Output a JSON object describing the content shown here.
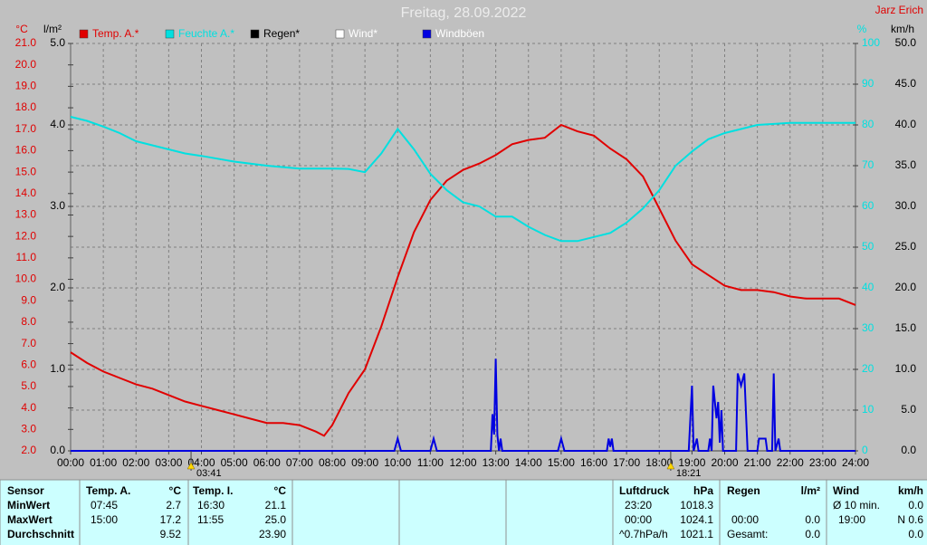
{
  "header": {
    "station": "Jarz Erich"
  },
  "chart_data": {
    "type": "line",
    "title": "Freitag, 28.09.2022",
    "ylabel": "°C",
    "y3label": "l/m²",
    "y2label": "%",
    "y4label": "km/h",
    "xlim": [
      0,
      24
    ],
    "xticks": [
      {
        "value": 0,
        "label": "00:00"
      },
      {
        "value": 1,
        "label": "01:00"
      },
      {
        "value": 2,
        "label": "02:00"
      },
      {
        "value": 3,
        "label": "03:00"
      },
      {
        "value": 4,
        "label": "04:00"
      },
      {
        "value": 5,
        "label": "05:00"
      },
      {
        "value": 6,
        "label": "06:00"
      },
      {
        "value": 7,
        "label": "07:00"
      },
      {
        "value": 8,
        "label": "08:00"
      },
      {
        "value": 9,
        "label": "09:00"
      },
      {
        "value": 10,
        "label": "10:00"
      },
      {
        "value": 11,
        "label": "11:00"
      },
      {
        "value": 12,
        "label": "12:00"
      },
      {
        "value": 13,
        "label": "13:00"
      },
      {
        "value": 14,
        "label": "14:00"
      },
      {
        "value": 15,
        "label": "15:00"
      },
      {
        "value": 16,
        "label": "16:00"
      },
      {
        "value": 17,
        "label": "17:00"
      },
      {
        "value": 18,
        "label": "18:00"
      },
      {
        "value": 19,
        "label": "19:00"
      },
      {
        "value": 20,
        "label": "20:00"
      },
      {
        "value": 21,
        "label": "21:00"
      },
      {
        "value": 22,
        "label": "22:00"
      },
      {
        "value": 23,
        "label": "23:00"
      },
      {
        "value": 24,
        "label": "24:00"
      }
    ],
    "ylim": [
      2,
      21
    ],
    "yticks": [
      {
        "value": 2,
        "label": "2.0"
      },
      {
        "value": 3,
        "label": "3.0"
      },
      {
        "value": 4,
        "label": "4.0"
      },
      {
        "value": 5,
        "label": "5.0"
      },
      {
        "value": 6,
        "label": "6.0"
      },
      {
        "value": 7,
        "label": "7.0"
      },
      {
        "value": 8,
        "label": "8.0"
      },
      {
        "value": 9,
        "label": "9.0"
      },
      {
        "value": 10,
        "label": "10.0"
      },
      {
        "value": 11,
        "label": "11.0"
      },
      {
        "value": 12,
        "label": "12.0"
      },
      {
        "value": 13,
        "label": "13.0"
      },
      {
        "value": 14,
        "label": "14.0"
      },
      {
        "value": 15,
        "label": "15.0"
      },
      {
        "value": 16,
        "label": "16.0"
      },
      {
        "value": 17,
        "label": "17.0"
      },
      {
        "value": 18,
        "label": "18.0"
      },
      {
        "value": 19,
        "label": "19.0"
      },
      {
        "value": 20,
        "label": "20.0"
      },
      {
        "value": 21,
        "label": "21.0"
      }
    ],
    "y3lim": [
      0,
      5
    ],
    "y3ticks": [
      {
        "value": 0,
        "label": "0.0"
      },
      {
        "value": 1,
        "label": "1.0"
      },
      {
        "value": 2,
        "label": "2.0"
      },
      {
        "value": 3,
        "label": "3.0"
      },
      {
        "value": 4,
        "label": "4.0"
      },
      {
        "value": 5,
        "label": "5.0"
      }
    ],
    "y2lim": [
      0,
      100
    ],
    "y2ticks": [
      0,
      10,
      20,
      30,
      40,
      50,
      60,
      70,
      80,
      90,
      100
    ],
    "y4lim": [
      0,
      50
    ],
    "y4ticks": [
      {
        "value": 0,
        "label": "0.0"
      },
      {
        "value": 5,
        "label": "5.0"
      },
      {
        "value": 10,
        "label": "10.0"
      },
      {
        "value": 15,
        "label": "15.0"
      },
      {
        "value": 20,
        "label": "20.0"
      },
      {
        "value": 25,
        "label": "25.0"
      },
      {
        "value": 30,
        "label": "30.0"
      },
      {
        "value": 35,
        "label": "35.0"
      },
      {
        "value": 40,
        "label": "40.0"
      },
      {
        "value": 45,
        "label": "45.0"
      },
      {
        "value": 50,
        "label": "50.0"
      }
    ],
    "grid": true,
    "series": [
      {
        "name": "Temp. A.*",
        "color": "#e00000",
        "axis": "y",
        "x": [
          0,
          0.5,
          1,
          1.5,
          2,
          2.5,
          3,
          3.5,
          4,
          4.5,
          5,
          5.5,
          6,
          6.5,
          7,
          7.5,
          7.75,
          8,
          8.5,
          9,
          9.5,
          10,
          10.5,
          11,
          11.5,
          12,
          12.5,
          13,
          13.5,
          14,
          14.5,
          15,
          15.5,
          16,
          16.5,
          17,
          17.5,
          18,
          18.5,
          19,
          19.5,
          20,
          20.5,
          21,
          21.5,
          22,
          22.5,
          23,
          23.5,
          24
        ],
        "values": [
          6.6,
          6.1,
          5.7,
          5.4,
          5.1,
          4.9,
          4.6,
          4.3,
          4.1,
          3.9,
          3.7,
          3.5,
          3.3,
          3.3,
          3.2,
          2.9,
          2.7,
          3.2,
          4.7,
          5.8,
          7.8,
          10.1,
          12.2,
          13.7,
          14.6,
          15.1,
          15.4,
          15.8,
          16.3,
          16.5,
          16.6,
          17.2,
          16.9,
          16.7,
          16.1,
          15.6,
          14.8,
          13.3,
          11.8,
          10.7,
          10.2,
          9.7,
          9.5,
          9.5,
          9.4,
          9.2,
          9.1,
          9.1,
          9.1,
          8.8
        ]
      },
      {
        "name": "Feuchte A.*",
        "color": "#00e0e0",
        "axis": "y2",
        "x": [
          0,
          0.5,
          1,
          1.5,
          2,
          2.5,
          3,
          3.5,
          4,
          5,
          6,
          7,
          8,
          8.5,
          9,
          9.5,
          10,
          10.5,
          11,
          11.5,
          12,
          12.5,
          13,
          13.5,
          14,
          14.5,
          15,
          15.5,
          16,
          16.5,
          17,
          17.5,
          18,
          18.5,
          19,
          19.5,
          20,
          20.5,
          21,
          22,
          23,
          24
        ],
        "values": [
          82,
          81,
          79.6,
          78,
          76,
          75,
          74,
          73,
          72.4,
          71,
          70,
          69.3,
          69.3,
          69.2,
          68.4,
          73,
          79,
          74,
          68,
          64,
          61,
          60,
          57.5,
          57.5,
          55,
          53,
          51.5,
          51.5,
          52.5,
          53.5,
          56,
          59.5,
          64,
          70,
          73.5,
          76.5,
          78,
          79,
          80,
          80.5,
          80.5,
          80.5
        ]
      },
      {
        "name": "Regen*",
        "color": "#000000",
        "axis": "y3",
        "x": [],
        "values": []
      },
      {
        "name": "Wind*",
        "color": "#ffffff",
        "axis": "y4",
        "x": [],
        "values": []
      },
      {
        "name": "Windböen",
        "color": "#0000e0",
        "axis": "y4",
        "x": [
          0,
          9.9,
          10,
          10.1,
          11,
          11.1,
          11.2,
          12.85,
          12.9,
          12.95,
          13,
          13.05,
          13.1,
          13.15,
          13.2,
          14.9,
          15,
          15.1,
          16.4,
          16.45,
          16.5,
          16.55,
          16.6,
          18.9,
          19,
          19.05,
          19.15,
          19.2,
          19.5,
          19.55,
          19.6,
          19.65,
          19.75,
          19.8,
          19.85,
          19.9,
          19.95,
          20.35,
          20.4,
          20.5,
          20.6,
          20.7,
          21,
          21.05,
          21.25,
          21.3,
          21.45,
          21.5,
          21.55,
          21.65,
          21.7,
          24
        ],
        "values": [
          0,
          0,
          1.5,
          0,
          0,
          1.5,
          0,
          0,
          4.5,
          2,
          11.3,
          2,
          0,
          1.5,
          0,
          0,
          1.5,
          0,
          0,
          1.5,
          0.5,
          1.5,
          0,
          0,
          8,
          0,
          1.5,
          0,
          0,
          1.5,
          0,
          8,
          4,
          6,
          1,
          5,
          0,
          0,
          9.5,
          8,
          9.5,
          0,
          0,
          1.5,
          1.5,
          0,
          0,
          9.5,
          0,
          1.5,
          0,
          0
        ]
      }
    ],
    "annotations": [
      {
        "label": "03:41",
        "x": 3.683
      },
      {
        "label": "18:21",
        "x": 18.35
      }
    ]
  },
  "summary": {
    "labels": {
      "title": "Sensor",
      "min": "MinWert",
      "max": "MaxWert",
      "avg": "Durchschnitt"
    },
    "temp_a": {
      "name": "Temp. A.",
      "unit": "°C",
      "min_time": "07:45",
      "min": "2.7",
      "max_time": "15:00",
      "max": "17.2",
      "avg": "9.52"
    },
    "temp_i": {
      "name": "Temp. I.",
      "unit": "°C",
      "min_time": "16:30",
      "min": "21.1",
      "max_time": "11:55",
      "max": "25.0",
      "avg": "23.90"
    },
    "pressure": {
      "name": "Luftdruck",
      "unit": "hPa",
      "min_time": "23:20",
      "min": "1018.3",
      "max_time": "00:00",
      "max": "1024.1",
      "trend": "^0.7hPa/h",
      "avg": "1021.1"
    },
    "rain": {
      "name": "Regen",
      "unit": "l/m²",
      "max_time": "00:00",
      "max": "0.0",
      "total_label": "Gesamt:",
      "total": "0.0"
    },
    "wind": {
      "name": "Wind",
      "unit": "km/h",
      "avg10_label": "Ø 10 min.",
      "avg10": "0.0",
      "max_time": "19:00",
      "max": "N 0.6",
      "avg": "0.0"
    }
  }
}
